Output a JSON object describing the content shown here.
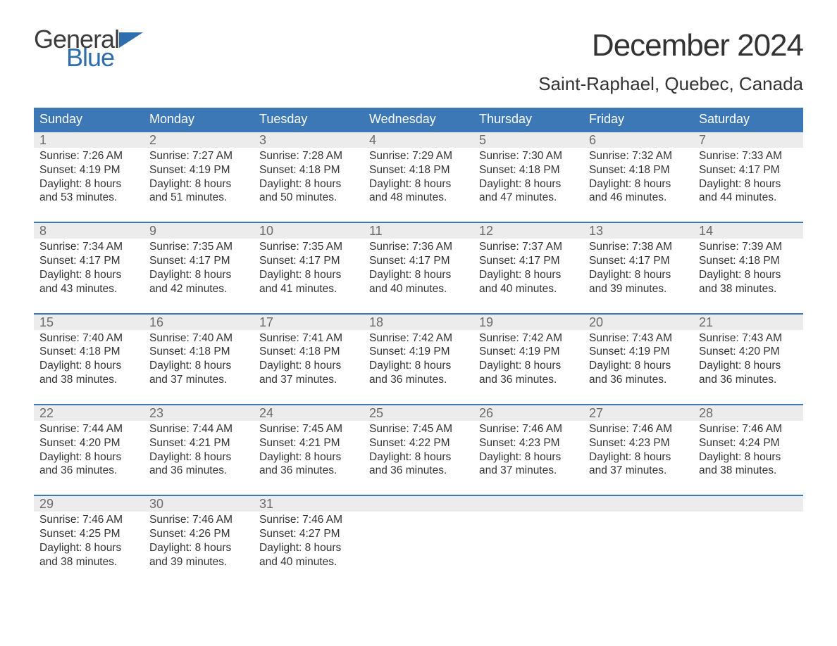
{
  "logo": {
    "word1": "General",
    "word2": "Blue",
    "arrow_color": "#2f6ead"
  },
  "title": "December 2024",
  "location": "Saint-Raphael, Quebec, Canada",
  "colors": {
    "header_blue": "#3b78b5",
    "rule_blue": "#3b78b5",
    "daynum_band": "#ececec",
    "daynum_text": "#6b6b6b",
    "body_text": "#333333",
    "logo_blue": "#2f6ead",
    "background": "#ffffff"
  },
  "typography": {
    "month_title_fontsize": 44,
    "location_fontsize": 26,
    "dow_fontsize": 18,
    "daynum_fontsize": 18,
    "body_fontsize": 15.5,
    "logo_fontsize": 36
  },
  "days_of_week": [
    "Sunday",
    "Monday",
    "Tuesday",
    "Wednesday",
    "Thursday",
    "Friday",
    "Saturday"
  ],
  "weeks": [
    [
      {
        "n": "1",
        "sunrise": "7:26 AM",
        "sunset": "4:19 PM",
        "dlh": "8",
        "dlm": "53"
      },
      {
        "n": "2",
        "sunrise": "7:27 AM",
        "sunset": "4:19 PM",
        "dlh": "8",
        "dlm": "51"
      },
      {
        "n": "3",
        "sunrise": "7:28 AM",
        "sunset": "4:18 PM",
        "dlh": "8",
        "dlm": "50"
      },
      {
        "n": "4",
        "sunrise": "7:29 AM",
        "sunset": "4:18 PM",
        "dlh": "8",
        "dlm": "48"
      },
      {
        "n": "5",
        "sunrise": "7:30 AM",
        "sunset": "4:18 PM",
        "dlh": "8",
        "dlm": "47"
      },
      {
        "n": "6",
        "sunrise": "7:32 AM",
        "sunset": "4:18 PM",
        "dlh": "8",
        "dlm": "46"
      },
      {
        "n": "7",
        "sunrise": "7:33 AM",
        "sunset": "4:17 PM",
        "dlh": "8",
        "dlm": "44"
      }
    ],
    [
      {
        "n": "8",
        "sunrise": "7:34 AM",
        "sunset": "4:17 PM",
        "dlh": "8",
        "dlm": "43"
      },
      {
        "n": "9",
        "sunrise": "7:35 AM",
        "sunset": "4:17 PM",
        "dlh": "8",
        "dlm": "42"
      },
      {
        "n": "10",
        "sunrise": "7:35 AM",
        "sunset": "4:17 PM",
        "dlh": "8",
        "dlm": "41"
      },
      {
        "n": "11",
        "sunrise": "7:36 AM",
        "sunset": "4:17 PM",
        "dlh": "8",
        "dlm": "40"
      },
      {
        "n": "12",
        "sunrise": "7:37 AM",
        "sunset": "4:17 PM",
        "dlh": "8",
        "dlm": "40"
      },
      {
        "n": "13",
        "sunrise": "7:38 AM",
        "sunset": "4:17 PM",
        "dlh": "8",
        "dlm": "39"
      },
      {
        "n": "14",
        "sunrise": "7:39 AM",
        "sunset": "4:18 PM",
        "dlh": "8",
        "dlm": "38"
      }
    ],
    [
      {
        "n": "15",
        "sunrise": "7:40 AM",
        "sunset": "4:18 PM",
        "dlh": "8",
        "dlm": "38"
      },
      {
        "n": "16",
        "sunrise": "7:40 AM",
        "sunset": "4:18 PM",
        "dlh": "8",
        "dlm": "37"
      },
      {
        "n": "17",
        "sunrise": "7:41 AM",
        "sunset": "4:18 PM",
        "dlh": "8",
        "dlm": "37"
      },
      {
        "n": "18",
        "sunrise": "7:42 AM",
        "sunset": "4:19 PM",
        "dlh": "8",
        "dlm": "36"
      },
      {
        "n": "19",
        "sunrise": "7:42 AM",
        "sunset": "4:19 PM",
        "dlh": "8",
        "dlm": "36"
      },
      {
        "n": "20",
        "sunrise": "7:43 AM",
        "sunset": "4:19 PM",
        "dlh": "8",
        "dlm": "36"
      },
      {
        "n": "21",
        "sunrise": "7:43 AM",
        "sunset": "4:20 PM",
        "dlh": "8",
        "dlm": "36"
      }
    ],
    [
      {
        "n": "22",
        "sunrise": "7:44 AM",
        "sunset": "4:20 PM",
        "dlh": "8",
        "dlm": "36"
      },
      {
        "n": "23",
        "sunrise": "7:44 AM",
        "sunset": "4:21 PM",
        "dlh": "8",
        "dlm": "36"
      },
      {
        "n": "24",
        "sunrise": "7:45 AM",
        "sunset": "4:21 PM",
        "dlh": "8",
        "dlm": "36"
      },
      {
        "n": "25",
        "sunrise": "7:45 AM",
        "sunset": "4:22 PM",
        "dlh": "8",
        "dlm": "36"
      },
      {
        "n": "26",
        "sunrise": "7:46 AM",
        "sunset": "4:23 PM",
        "dlh": "8",
        "dlm": "37"
      },
      {
        "n": "27",
        "sunrise": "7:46 AM",
        "sunset": "4:23 PM",
        "dlh": "8",
        "dlm": "37"
      },
      {
        "n": "28",
        "sunrise": "7:46 AM",
        "sunset": "4:24 PM",
        "dlh": "8",
        "dlm": "38"
      }
    ],
    [
      {
        "n": "29",
        "sunrise": "7:46 AM",
        "sunset": "4:25 PM",
        "dlh": "8",
        "dlm": "38"
      },
      {
        "n": "30",
        "sunrise": "7:46 AM",
        "sunset": "4:26 PM",
        "dlh": "8",
        "dlm": "39"
      },
      {
        "n": "31",
        "sunrise": "7:46 AM",
        "sunset": "4:27 PM",
        "dlh": "8",
        "dlm": "40"
      },
      null,
      null,
      null,
      null
    ]
  ],
  "labels": {
    "sunrise_prefix": "Sunrise: ",
    "sunset_prefix": "Sunset: ",
    "daylight_prefix": "Daylight: ",
    "hours_word": " hours",
    "and_word": "and ",
    "minutes_suffix": " minutes."
  }
}
